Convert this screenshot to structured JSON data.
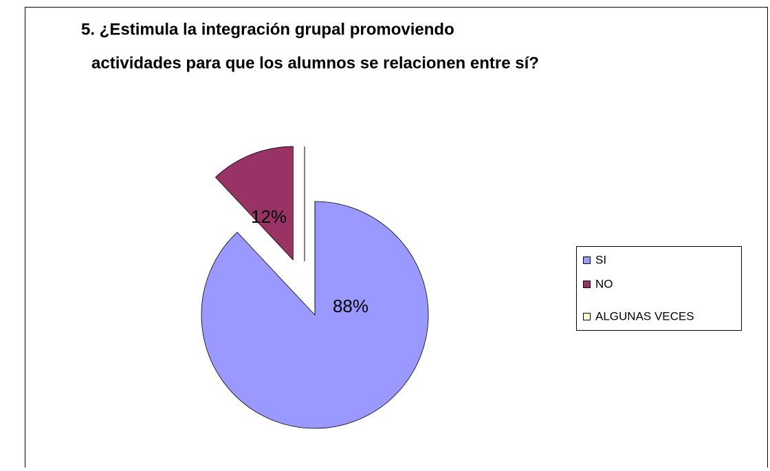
{
  "chart_data": {
    "type": "pie",
    "title": [
      "5. ¿Estimula la integración grupal promoviendo",
      "actividades para que los alumnos se relacionen entre sí?"
    ],
    "categories": [
      "SI",
      "NO",
      "ALGUNAS VECES"
    ],
    "values": [
      88,
      12,
      0
    ],
    "value_labels": [
      "88%",
      "12%",
      null
    ],
    "colors": [
      "#9999ff",
      "#993366",
      "#ffffcc"
    ],
    "legend": "right"
  }
}
